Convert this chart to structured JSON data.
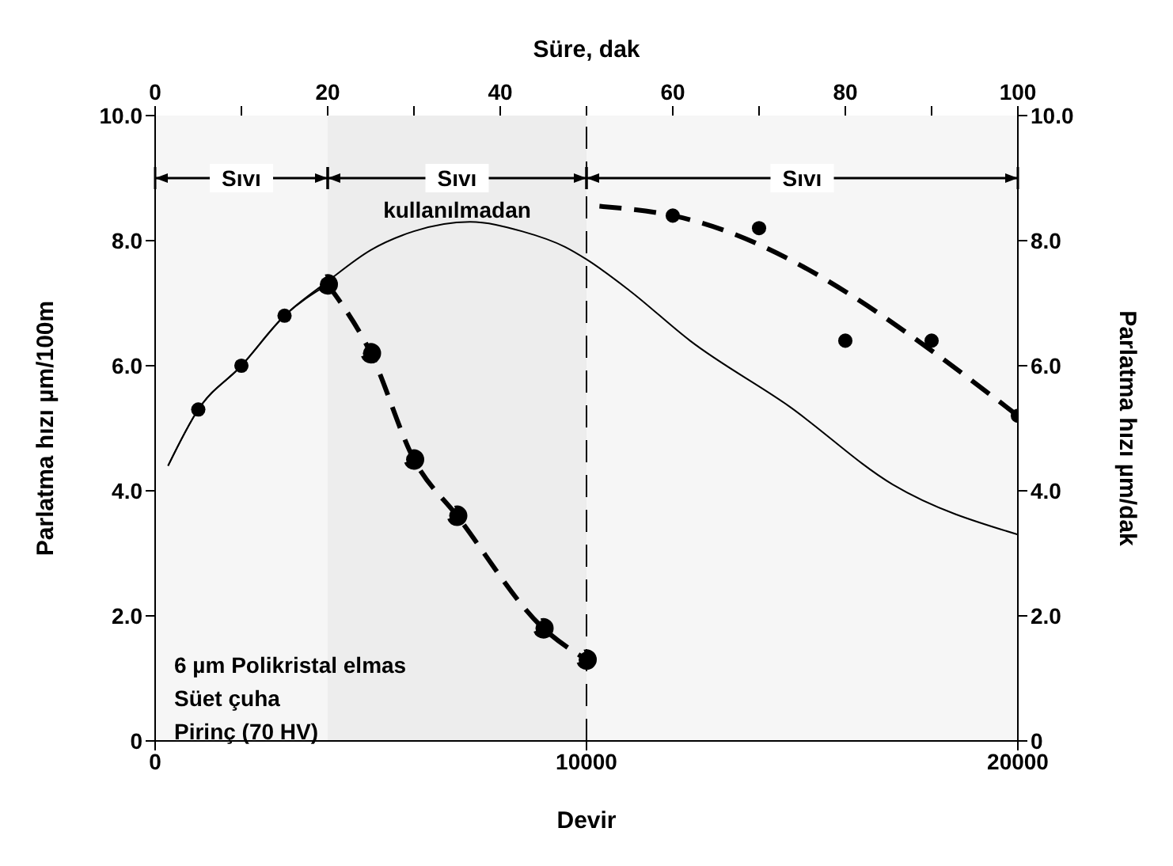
{
  "chart_data": {
    "type": "line",
    "xlabel": "Devir",
    "ylabel": "Parlatma hızı µm/100m",
    "y2label": "Parlatma hızı µm/dak",
    "x2label": "Süre, dak",
    "xlim": [
      0,
      20000
    ],
    "xticks": [
      0,
      10000,
      20000
    ],
    "x2lim": [
      0,
      100
    ],
    "x2ticks": [
      0,
      {
        "value": 10,
        "label": null
      },
      20,
      {
        "value": 30,
        "label": null
      },
      40,
      {
        "value": 50,
        "label": null
      },
      60,
      {
        "value": 70,
        "label": null
      },
      80,
      {
        "value": 90,
        "label": null
      },
      100
    ],
    "ylim": [
      0,
      10
    ],
    "yticks": [
      0,
      {
        "value": 2,
        "label": "2.0"
      },
      {
        "value": 4,
        "label": "4.0"
      },
      {
        "value": 6,
        "label": "6.0"
      },
      {
        "value": 8,
        "label": "8.0"
      },
      {
        "value": 10,
        "label": "10.0"
      }
    ],
    "y2lim": [
      0,
      10
    ],
    "y2ticks": [
      0,
      {
        "value": 2,
        "label": "2.0"
      },
      {
        "value": 4,
        "label": "4.0"
      },
      {
        "value": 6,
        "label": "6.0"
      },
      {
        "value": 8,
        "label": "8.0"
      },
      {
        "value": 10,
        "label": "10.0"
      }
    ],
    "series": [
      {
        "color": "#000000",
        "line_style": "solid",
        "marker": "none",
        "x": [
          300,
          1000,
          2000,
          3000,
          4000,
          5000,
          6000,
          7300,
          8500,
          9500,
          10000,
          11000,
          12400,
          14700,
          17100,
          20000
        ],
        "values": [
          4.4,
          5.3,
          6.0,
          6.8,
          7.35,
          7.85,
          8.15,
          8.3,
          8.15,
          7.9,
          7.7,
          7.2,
          6.4,
          5.35,
          4.1,
          3.3
        ]
      },
      {
        "color": "#000000",
        "line_style": "solid",
        "marker": "none",
        "x": [
          300,
          1000,
          2000,
          3000,
          4000
        ],
        "values": [
          4.4,
          5.3,
          6.0,
          6.8,
          7.3
        ]
      },
      {
        "type": "scatter",
        "color": "#000000",
        "marker": "circle",
        "x": [
          1000,
          2000,
          3000
        ],
        "values": [
          5.3,
          6.0,
          6.8
        ]
      },
      {
        "color": "#000000",
        "line_style": "dashed",
        "marker": "circle",
        "x": [
          4000,
          5000,
          6000,
          7000,
          9000,
          10000
        ],
        "values": [
          7.3,
          6.2,
          4.5,
          3.6,
          1.8,
          1.3
        ]
      },
      {
        "color": "#000000",
        "line_style": "dashed",
        "marker": "none",
        "x": [
          10300,
          12000,
          20000
        ],
        "values": [
          8.55,
          8.4,
          5.2
        ]
      },
      {
        "type": "scatter",
        "color": "#000000",
        "marker": "circle",
        "x": [
          12000,
          14000,
          16000,
          18000,
          20000
        ],
        "values": [
          8.4,
          8.2,
          6.4,
          6.4,
          5.2
        ]
      }
    ],
    "ref_lines": [
      {
        "axis": "x",
        "value": 10000,
        "line_style": "dashed",
        "color": "#000000"
      }
    ],
    "bands": [
      {
        "axis": "x",
        "from": 0,
        "to": 4000,
        "label": "Sıvı"
      },
      {
        "axis": "x",
        "from": 4000,
        "to": 10000,
        "label": "Sıvı kullanılmadan"
      },
      {
        "axis": "x",
        "from": 10000,
        "to": 20000,
        "label": "Sıvı"
      }
    ],
    "annotations": [
      "6 µm Polikristal elmas",
      "Süet çuha",
      "Pirinç (70 HV)"
    ],
    "grid": false
  }
}
